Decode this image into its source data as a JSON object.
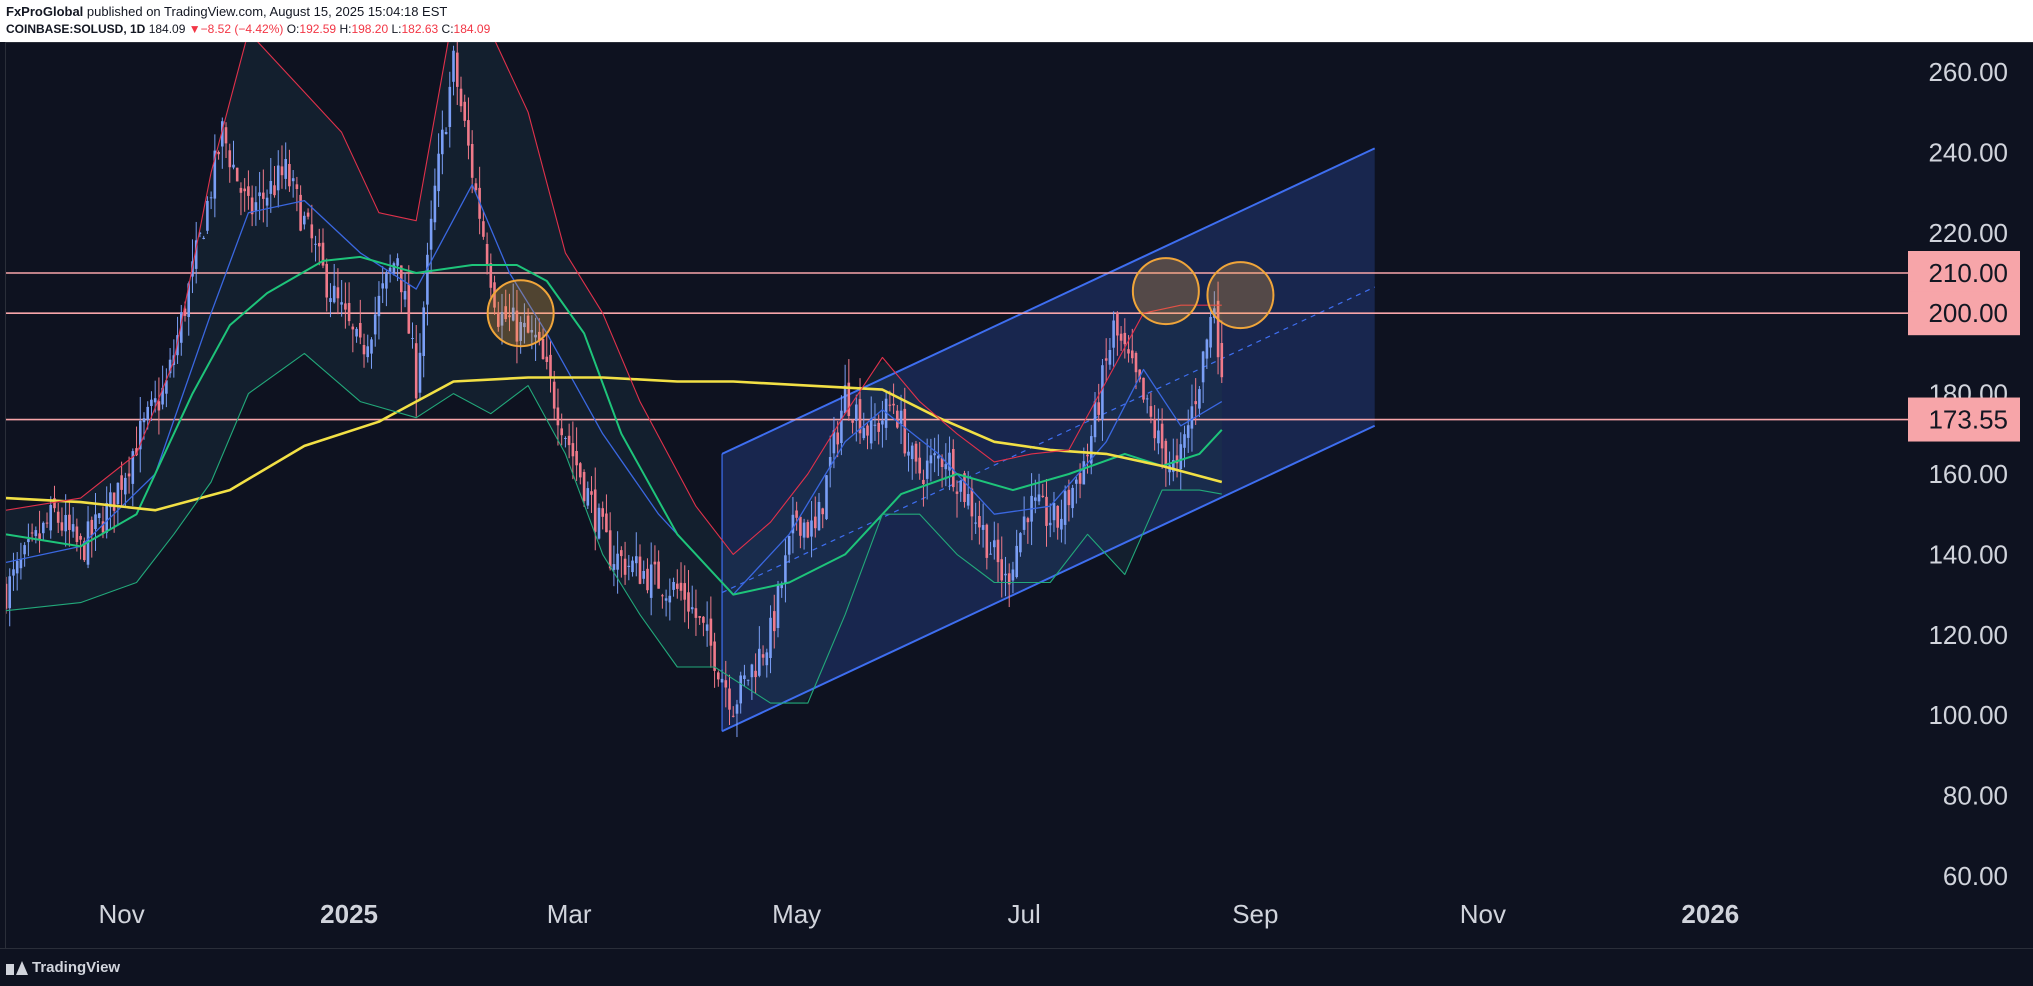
{
  "header": {
    "author": "FxProGlobal",
    "published_text": "published on TradingView.com, August 15, 2025 15:04:18 EST",
    "symbol": "COINBASE:SOLUSD, 1D",
    "last_price": "184.09",
    "change": "−8.52 (−4.42%)",
    "open_label": "O:",
    "open_value": "192.59",
    "high_label": "H:",
    "high_value": "198.20",
    "low_label": "L:",
    "low_value": "182.63",
    "close_label": "C:",
    "close_value": "184.09"
  },
  "footer": {
    "brand": "TradingView"
  },
  "colors": {
    "background": "#0e1220",
    "bull_candle": "#7a9ef5",
    "bear_candle": "#f07a8a",
    "ema_fast": "#3a67e0",
    "ema_slow": "#1ec47a",
    "ma_long": "#f2e045",
    "bb_upper": "#e0314b",
    "bb_lower": "#22a87a",
    "channel": "#3e6ef0",
    "level_line": "#f7a5a9",
    "circle": "#f0a53a"
  },
  "chart_data": {
    "type": "candlestick",
    "symbol": "COINBASE:SOLUSD",
    "interval": "1D",
    "ylim": [
      55,
      270
    ],
    "y_ticks": [
      "260.00",
      "240.00",
      "220.00",
      "200.00",
      "180.00",
      "160.00",
      "140.00",
      "120.00",
      "100.00",
      "80.00",
      "60.00"
    ],
    "y_tick_values": [
      260,
      240,
      220,
      200,
      180,
      160,
      140,
      120,
      100,
      80,
      60
    ],
    "x_range_days": [
      0,
      510
    ],
    "x_ticks": [
      {
        "label": "Nov",
        "day": 31,
        "bold": false
      },
      {
        "label": "2025",
        "day": 92,
        "bold": true
      },
      {
        "label": "Mar",
        "day": 151,
        "bold": false
      },
      {
        "label": "May",
        "day": 212,
        "bold": false
      },
      {
        "label": "Jul",
        "day": 273,
        "bold": false
      },
      {
        "label": "Sep",
        "day": 335,
        "bold": false
      },
      {
        "label": "Nov",
        "day": 396,
        "bold": false
      },
      {
        "label": "2026",
        "day": 457,
        "bold": true
      }
    ],
    "close_anchors": [
      [
        0,
        131
      ],
      [
        8,
        143
      ],
      [
        13,
        150
      ],
      [
        20,
        141
      ],
      [
        28,
        152
      ],
      [
        35,
        168
      ],
      [
        43,
        182
      ],
      [
        52,
        218
      ],
      [
        58,
        245
      ],
      [
        65,
        225
      ],
      [
        75,
        235
      ],
      [
        85,
        210
      ],
      [
        95,
        190
      ],
      [
        105,
        215
      ],
      [
        110,
        183
      ],
      [
        115,
        230
      ],
      [
        120,
        262
      ],
      [
        126,
        230
      ],
      [
        132,
        200
      ],
      [
        142,
        193
      ],
      [
        152,
        165
      ],
      [
        162,
        140
      ],
      [
        172,
        135
      ],
      [
        182,
        130
      ],
      [
        190,
        115
      ],
      [
        195,
        103
      ],
      [
        205,
        120
      ],
      [
        212,
        150
      ],
      [
        217,
        145
      ],
      [
        225,
        180
      ],
      [
        232,
        170
      ],
      [
        238,
        178
      ],
      [
        244,
        160
      ],
      [
        252,
        165
      ],
      [
        260,
        150
      ],
      [
        268,
        133
      ],
      [
        274,
        152
      ],
      [
        282,
        148
      ],
      [
        290,
        165
      ],
      [
        297,
        196
      ],
      [
        303,
        183
      ],
      [
        309,
        168
      ],
      [
        314,
        160
      ],
      [
        320,
        184
      ],
      [
        324,
        203
      ],
      [
        326,
        184
      ]
    ],
    "ohlc_last": {
      "open": 192.59,
      "high": 198.2,
      "low": 182.63,
      "close": 184.09,
      "change": -8.52,
      "change_pct": -4.42
    },
    "series": [
      {
        "kind": "ema_fast",
        "points": [
          [
            0,
            138
          ],
          [
            20,
            142
          ],
          [
            40,
            160
          ],
          [
            55,
            200
          ],
          [
            65,
            225
          ],
          [
            80,
            228
          ],
          [
            95,
            215
          ],
          [
            110,
            206
          ],
          [
            125,
            232
          ],
          [
            135,
            210
          ],
          [
            145,
            195
          ],
          [
            160,
            170
          ],
          [
            175,
            150
          ],
          [
            195,
            130
          ],
          [
            210,
            145
          ],
          [
            225,
            168
          ],
          [
            235,
            176
          ],
          [
            250,
            165
          ],
          [
            265,
            150
          ],
          [
            280,
            152
          ],
          [
            295,
            168
          ],
          [
            305,
            186
          ],
          [
            315,
            172
          ],
          [
            326,
            178
          ]
        ]
      },
      {
        "kind": "ema_slow",
        "points": [
          [
            0,
            145
          ],
          [
            20,
            142
          ],
          [
            35,
            150
          ],
          [
            50,
            180
          ],
          [
            60,
            197
          ],
          [
            70,
            205
          ],
          [
            85,
            213
          ],
          [
            95,
            214
          ],
          [
            110,
            210
          ],
          [
            125,
            212
          ],
          [
            137,
            212
          ],
          [
            145,
            208
          ],
          [
            155,
            195
          ],
          [
            165,
            170
          ],
          [
            180,
            145
          ],
          [
            195,
            130
          ],
          [
            210,
            133
          ],
          [
            225,
            140
          ],
          [
            240,
            155
          ],
          [
            255,
            160
          ],
          [
            270,
            156
          ],
          [
            285,
            160
          ],
          [
            300,
            165
          ],
          [
            310,
            162
          ],
          [
            320,
            165
          ],
          [
            326,
            171
          ]
        ]
      },
      {
        "kind": "ma_long",
        "points": [
          [
            0,
            154
          ],
          [
            20,
            153
          ],
          [
            40,
            151
          ],
          [
            60,
            156
          ],
          [
            80,
            167
          ],
          [
            100,
            173
          ],
          [
            120,
            183
          ],
          [
            140,
            184
          ],
          [
            160,
            184
          ],
          [
            180,
            183
          ],
          [
            195,
            183
          ],
          [
            215,
            182
          ],
          [
            235,
            181
          ],
          [
            250,
            174
          ],
          [
            265,
            168
          ],
          [
            280,
            166
          ],
          [
            295,
            165
          ],
          [
            310,
            162
          ],
          [
            326,
            158
          ]
        ]
      },
      {
        "kind": "bb_upper",
        "points": [
          [
            0,
            151
          ],
          [
            20,
            154
          ],
          [
            35,
            165
          ],
          [
            45,
            188
          ],
          [
            55,
            235
          ],
          [
            65,
            270
          ],
          [
            80,
            255
          ],
          [
            90,
            245
          ],
          [
            100,
            225
          ],
          [
            110,
            223
          ],
          [
            120,
            275
          ],
          [
            130,
            270
          ],
          [
            140,
            250
          ],
          [
            150,
            215
          ],
          [
            160,
            200
          ],
          [
            170,
            178
          ],
          [
            185,
            152
          ],
          [
            195,
            140
          ],
          [
            205,
            148
          ],
          [
            215,
            160
          ],
          [
            225,
            175
          ],
          [
            235,
            189
          ],
          [
            245,
            178
          ],
          [
            255,
            170
          ],
          [
            265,
            163
          ],
          [
            275,
            165
          ],
          [
            285,
            166
          ],
          [
            295,
            183
          ],
          [
            305,
            200
          ],
          [
            315,
            202
          ],
          [
            326,
            202
          ]
        ]
      },
      {
        "kind": "bb_lower",
        "points": [
          [
            0,
            126
          ],
          [
            20,
            128
          ],
          [
            35,
            133
          ],
          [
            45,
            145
          ],
          [
            55,
            158
          ],
          [
            65,
            180
          ],
          [
            80,
            190
          ],
          [
            95,
            178
          ],
          [
            110,
            174
          ],
          [
            120,
            180
          ],
          [
            130,
            175
          ],
          [
            140,
            182
          ],
          [
            150,
            165
          ],
          [
            160,
            140
          ],
          [
            170,
            125
          ],
          [
            180,
            112
          ],
          [
            190,
            112
          ],
          [
            205,
            103
          ],
          [
            215,
            103
          ],
          [
            225,
            125
          ],
          [
            235,
            150
          ],
          [
            245,
            150
          ],
          [
            255,
            140
          ],
          [
            265,
            133
          ],
          [
            280,
            133
          ],
          [
            290,
            145
          ],
          [
            300,
            135
          ],
          [
            310,
            156
          ],
          [
            320,
            156
          ],
          [
            326,
            155
          ]
        ]
      }
    ],
    "horizontal_levels": [
      {
        "value": 210.0,
        "label": "210.00"
      },
      {
        "value": 200.0,
        "label": "200.00"
      },
      {
        "value": 173.55,
        "label": "173.55"
      }
    ],
    "channel": {
      "lower": [
        [
          192,
          96
        ],
        [
          367,
          172
        ]
      ],
      "upper": [
        [
          192,
          165
        ],
        [
          367,
          241
        ]
      ],
      "mid_from_day": 192
    },
    "highlight_circles": [
      {
        "day": 138,
        "price": 200.0
      },
      {
        "day": 311,
        "price": 205.5
      },
      {
        "day": 331,
        "price": 204.5
      }
    ]
  }
}
